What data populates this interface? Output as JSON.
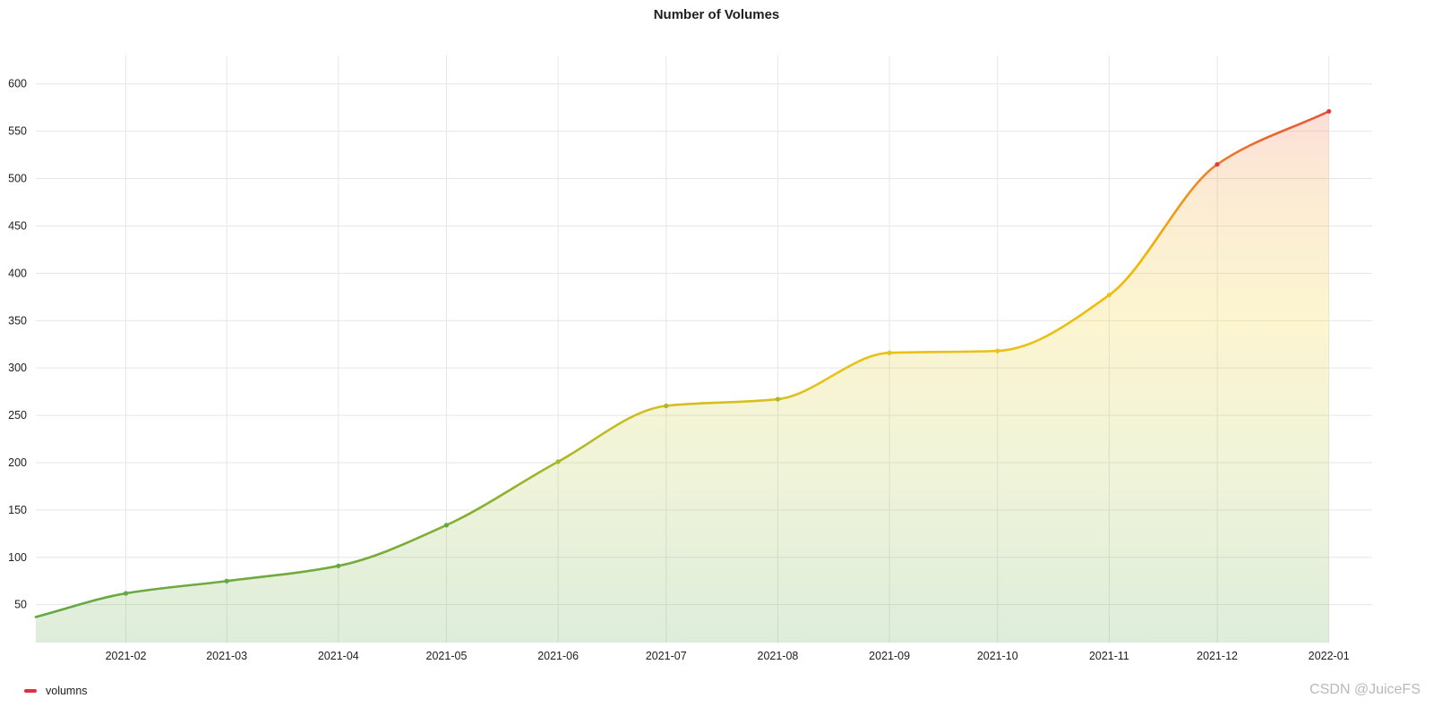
{
  "watermark": "CSDN @JuiceFS",
  "chart_data": {
    "type": "area",
    "title": "Number of Volumes",
    "xlabel": "",
    "ylabel": "",
    "x": [
      "2021-01-07",
      "2021-02",
      "2021-03",
      "2021-04",
      "2021-05",
      "2021-06",
      "2021-07",
      "2021-08",
      "2021-09",
      "2021-10",
      "2021-11",
      "2021-12",
      "2022-01"
    ],
    "x_tick_labels": [
      "2021-02",
      "2021-03",
      "2021-04",
      "2021-05",
      "2021-06",
      "2021-07",
      "2021-08",
      "2021-09",
      "2021-10",
      "2021-11",
      "2021-12",
      "2022-01"
    ],
    "series": [
      {
        "name": "volumns",
        "values": [
          37,
          62,
          75,
          91,
          134,
          201,
          260,
          267,
          316,
          318,
          377,
          515,
          571
        ]
      }
    ],
    "ylim": [
      10,
      630
    ],
    "y_ticks": [
      50,
      100,
      150,
      200,
      250,
      300,
      350,
      400,
      450,
      500,
      550,
      600
    ],
    "grid": true,
    "legend": "bottom-left",
    "colors": {
      "low": "#56a64b",
      "mid": "#e8c31a",
      "high": "#e02f44",
      "legend": "#e02f44"
    }
  }
}
